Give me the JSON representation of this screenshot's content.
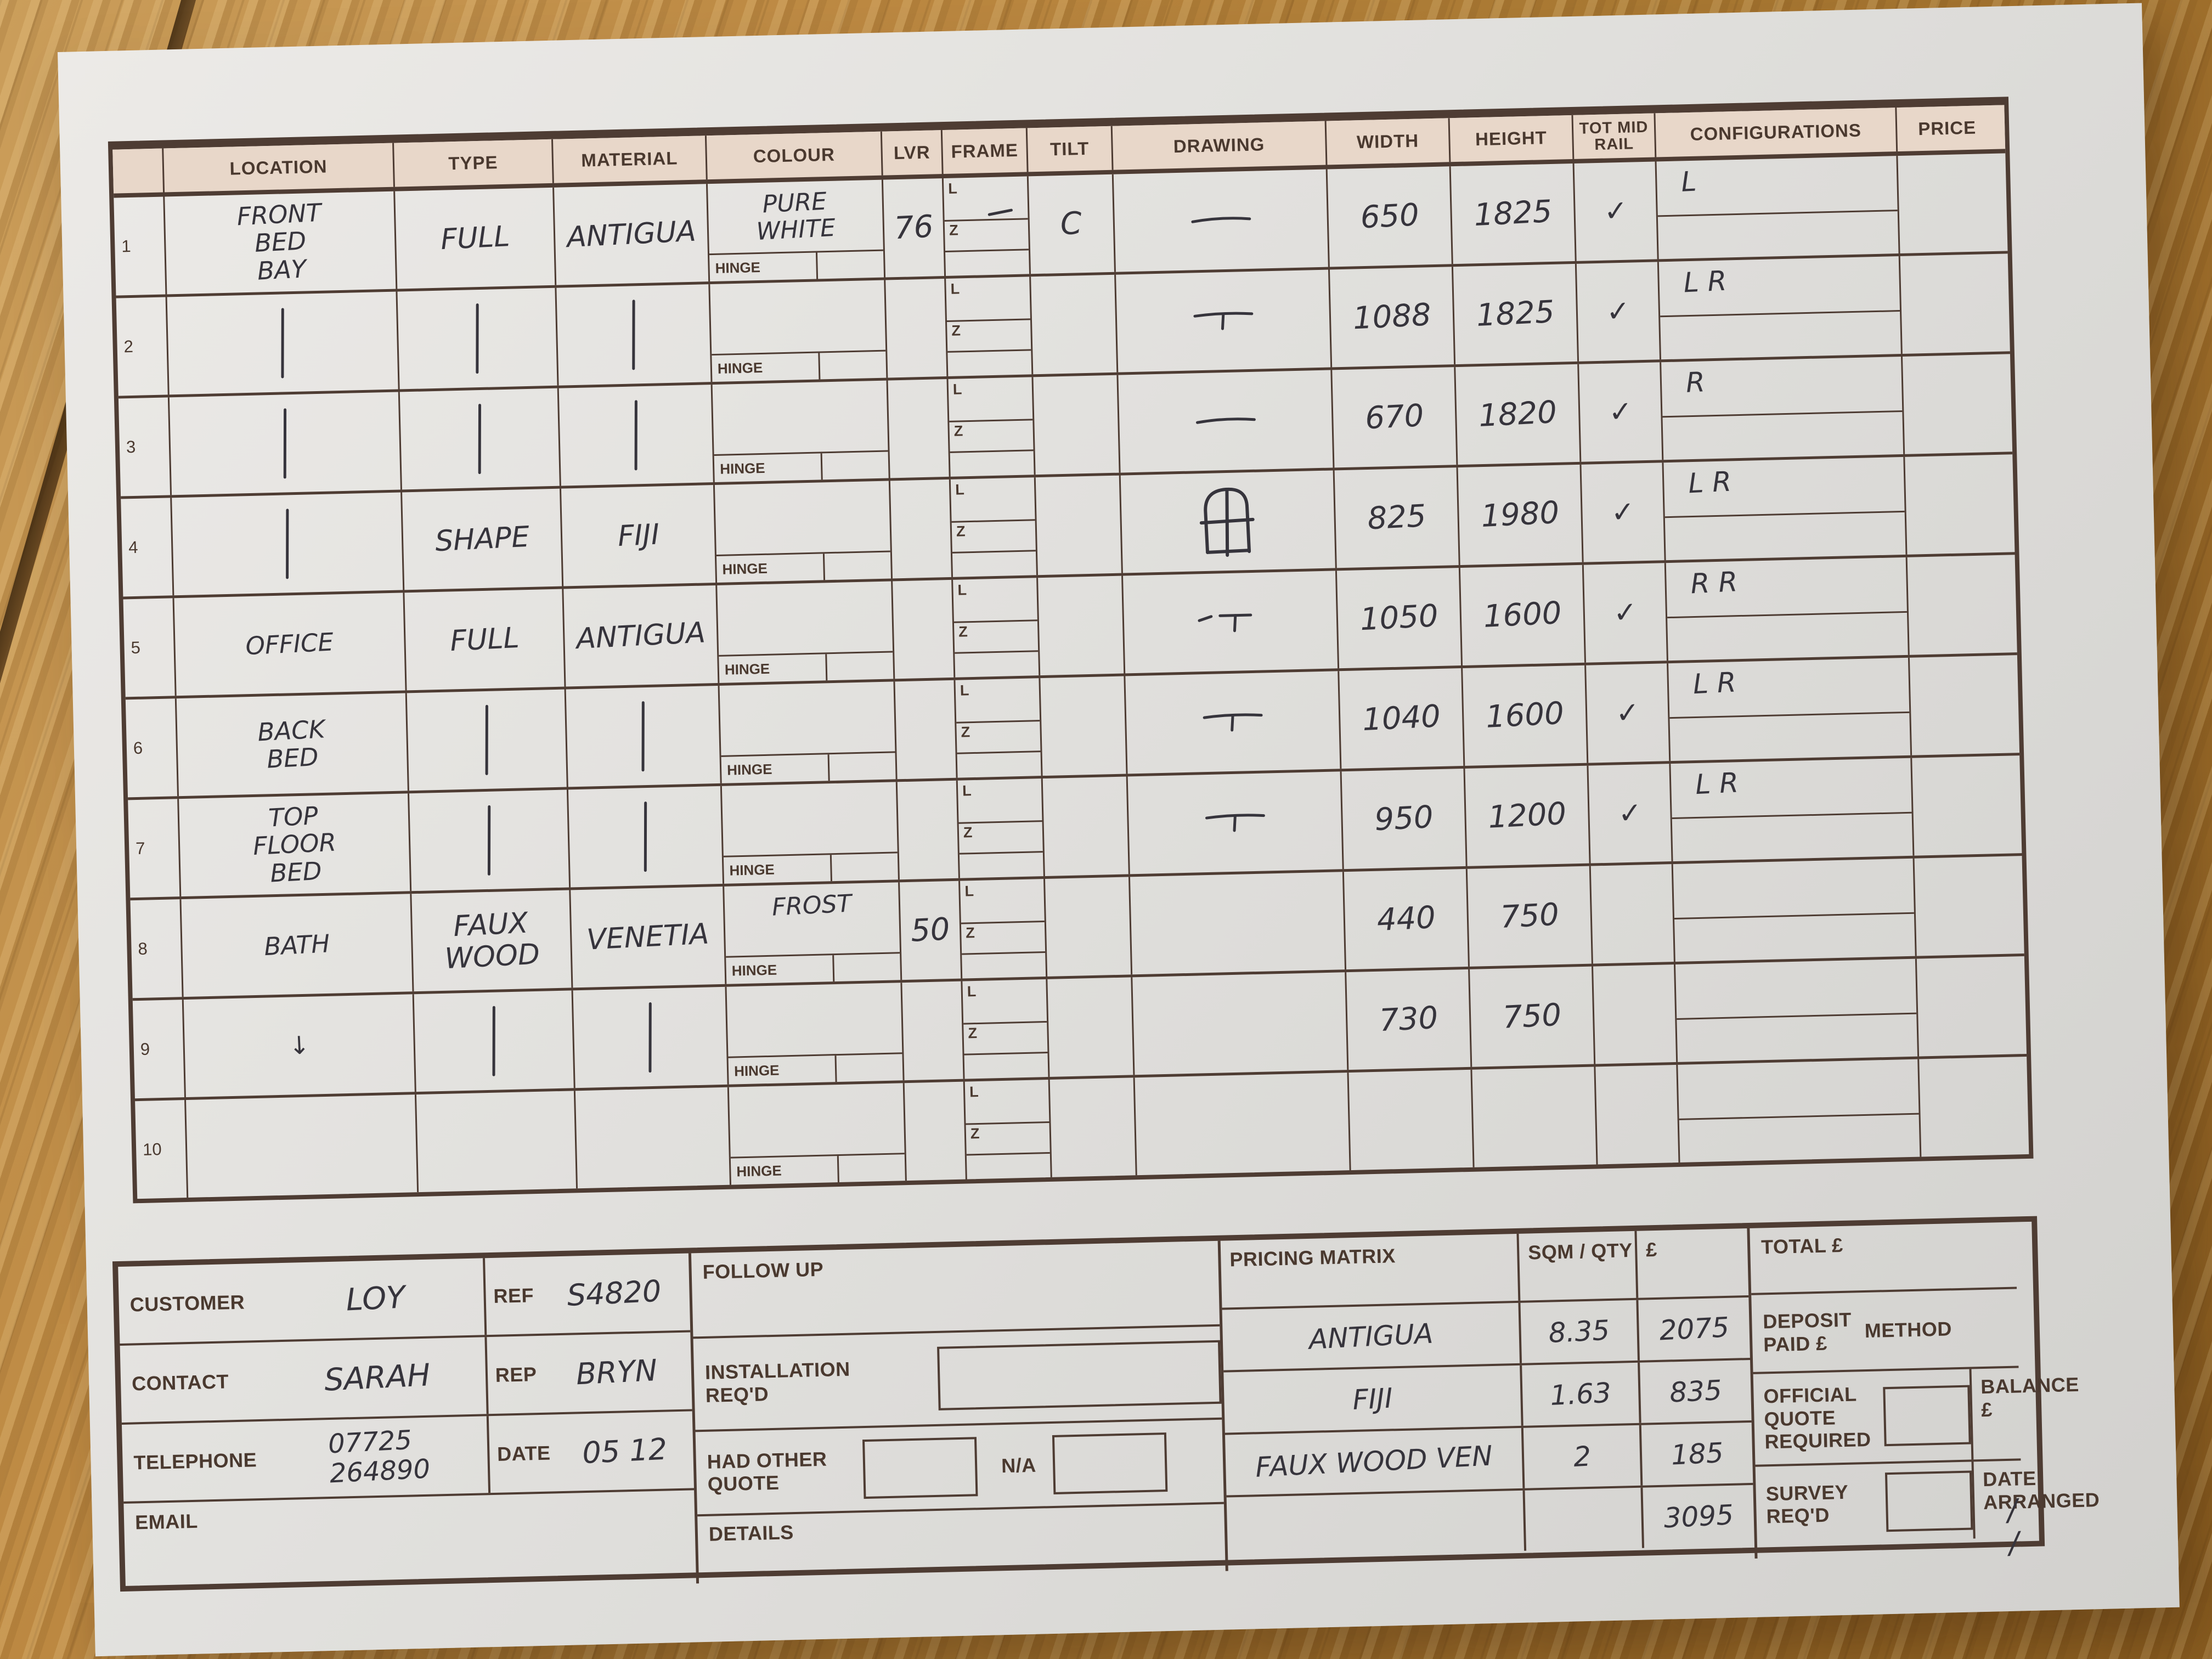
{
  "form": {
    "table": {
      "columns": [
        "LOCATION",
        "TYPE",
        "MATERIAL",
        "COLOUR",
        "LVR",
        "FRAME",
        "TILT",
        "DRAWING",
        "WIDTH",
        "HEIGHT",
        "TOT MID RAIL",
        "CONFIGURATIONS",
        "PRICE"
      ],
      "frame_sub_labels": [
        "L",
        "Z"
      ],
      "hinge_label": "HINGE",
      "rows": [
        {
          "num": "1",
          "location": "FRONT\nBED\nBAY",
          "type": "FULL",
          "material": "ANTIGUA",
          "colour": "PURE\nWHITE",
          "lvr": "76",
          "frame_mark": "-",
          "tilt": "C",
          "drawing": "flat",
          "width": "650",
          "height": "1825",
          "mid_rail": "✓",
          "config": "L",
          "price": ""
        },
        {
          "num": "2",
          "location": "|",
          "type": "|",
          "material": "|",
          "colour": "",
          "lvr": "",
          "frame_mark": "",
          "tilt": "",
          "drawing": "tee",
          "width": "1088",
          "height": "1825",
          "mid_rail": "✓",
          "config": "LR",
          "price": ""
        },
        {
          "num": "3",
          "location": "|",
          "type": "|",
          "material": "|",
          "colour": "",
          "lvr": "",
          "frame_mark": "",
          "tilt": "",
          "drawing": "flat",
          "width": "670",
          "height": "1820",
          "mid_rail": "✓",
          "config": "R",
          "price": ""
        },
        {
          "num": "4",
          "location": "|",
          "type": "SHAPE",
          "material": "FIJI",
          "colour": "",
          "lvr": "",
          "frame_mark": "",
          "tilt": "",
          "drawing": "arch-window",
          "width": "825",
          "height": "1980",
          "mid_rail": "✓",
          "config": "LR",
          "price": ""
        },
        {
          "num": "5",
          "location": "OFFICE",
          "type": "FULL",
          "material": "ANTIGUA",
          "colour": "",
          "lvr": "",
          "frame_mark": "",
          "tilt": "",
          "drawing": "tee-dash",
          "width": "1050",
          "height": "1600",
          "mid_rail": "✓",
          "config": "RR",
          "price": ""
        },
        {
          "num": "6",
          "location": "BACK\nBED",
          "type": "|",
          "material": "|",
          "colour": "",
          "lvr": "",
          "frame_mark": "",
          "tilt": "",
          "drawing": "tee",
          "width": "1040",
          "height": "1600",
          "mid_rail": "✓",
          "config": "LR",
          "price": ""
        },
        {
          "num": "7",
          "location": "TOP\nFLOOR\nBED",
          "type": "|",
          "material": "|",
          "colour": "",
          "lvr": "",
          "frame_mark": "",
          "tilt": "",
          "drawing": "tee",
          "width": "950",
          "height": "1200",
          "mid_rail": "✓",
          "config": "LR",
          "price": ""
        },
        {
          "num": "8",
          "location": "BATH",
          "type": "FAUX WOOD",
          "material": "VENETIA",
          "colour": "FROST",
          "lvr": "50",
          "frame_mark": "",
          "tilt": "",
          "drawing": "",
          "width": "440",
          "height": "750",
          "mid_rail": "",
          "config": "",
          "price": ""
        },
        {
          "num": "9",
          "location": "↓",
          "type": "|",
          "material": "|",
          "colour": "",
          "lvr": "",
          "frame_mark": "",
          "tilt": "",
          "drawing": "",
          "width": "730",
          "height": "750",
          "mid_rail": "",
          "config": "",
          "price": ""
        },
        {
          "num": "10",
          "location": "",
          "type": "",
          "material": "",
          "colour": "",
          "lvr": "",
          "frame_mark": "",
          "tilt": "",
          "drawing": "",
          "width": "",
          "height": "",
          "mid_rail": "",
          "config": "",
          "price": ""
        }
      ]
    },
    "customer_block": {
      "rows": [
        {
          "label": "CUSTOMER",
          "value": "LOY",
          "sub_label": "REF",
          "sub_value": "S4820"
        },
        {
          "label": "CONTACT",
          "value": "SARAH",
          "sub_label": "REP",
          "sub_value": "BRYN"
        },
        {
          "label": "TELEPHONE",
          "value": "07725\n264890",
          "sub_label": "DATE",
          "sub_value": "05 12"
        },
        {
          "label": "EMAIL",
          "value": "",
          "sub_label": "",
          "sub_value": ""
        }
      ]
    },
    "followup_block": {
      "follow_up_label": "FOLLOW UP",
      "installation_label": "INSTALLATION REQ'D",
      "had_other_quote_label": "HAD OTHER QUOTE",
      "na_label": "N/A",
      "details_label": "DETAILS"
    },
    "pricing_block": {
      "title": "PRICING MATRIX",
      "qty_header": "SQM / QTY",
      "currency_header": "£",
      "rows": [
        {
          "name": "ANTIGUA",
          "qty": "8.35",
          "price": "2075"
        },
        {
          "name": "FIJI",
          "qty": "1.63",
          "price": "835"
        },
        {
          "name": "FAUX WOOD VEN",
          "qty": "2",
          "price": "185"
        },
        {
          "name": "",
          "qty": "",
          "price": "3095"
        }
      ]
    },
    "totals_block": {
      "total_label": "TOTAL £",
      "deposit_label": "DEPOSIT PAID £",
      "method_label": "METHOD",
      "official_quote_label": "OFFICIAL QUOTE REQUIRED",
      "balance_label": "BALANCE £",
      "survey_label": "SURVEY REQ'D",
      "date_arranged_label": "DATE ARRANGED",
      "date_arranged_value": "/ /"
    }
  }
}
